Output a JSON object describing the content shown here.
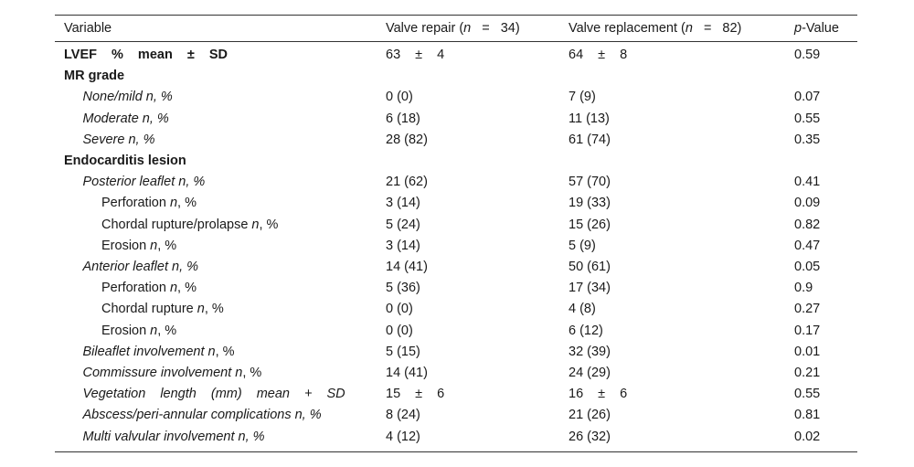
{
  "table": {
    "header": {
      "variable": "Variable",
      "repair": [
        "Valve repair (",
        "n",
        "=",
        "34)"
      ],
      "replacement": [
        "Valve replacement (",
        "n",
        "=",
        "82)"
      ],
      "p": [
        "p",
        "-Value"
      ]
    },
    "rows": [
      {
        "label": [
          "LVEF % mean ± SD"
        ],
        "repair": "63 ± 4",
        "replacement": "64 ± 8",
        "p": 0.59
      },
      {
        "label": [
          "MR grade"
        ]
      },
      {
        "label": [
          "None/mild n, %"
        ],
        "repair": "0 (0)",
        "replacement": "7 (9)",
        "p": 0.07
      },
      {
        "label": [
          "Moderate n, %"
        ],
        "repair": "6 (18)",
        "replacement": "11 (13)",
        "p": 0.55
      },
      {
        "label": [
          "Severe n, %"
        ],
        "repair": "28 (82)",
        "replacement": "61 (74)",
        "p": 0.35
      },
      {
        "label": [
          "Endocarditis lesion"
        ]
      },
      {
        "label": [
          "Posterior leaflet n, %"
        ],
        "repair": "21 (62)",
        "replacement": "57 (70)",
        "p": 0.41
      },
      {
        "label": [
          "Perforation",
          "n",
          ", %"
        ],
        "repair": "3 (14)",
        "replacement": "19 (33)",
        "p": 0.09
      },
      {
        "label": [
          "Chordal rupture/prolapse",
          "n",
          ", %"
        ],
        "repair": "5 (24)",
        "replacement": "15 (26)",
        "p": 0.82
      },
      {
        "label": [
          "Erosion",
          "n",
          ", %"
        ],
        "repair": "3 (14)",
        "replacement": "5 (9)",
        "p": 0.47
      },
      {
        "label": [
          "Anterior leaflet n, %"
        ],
        "repair": "14 (41)",
        "replacement": "50 (61)",
        "p": 0.05
      },
      {
        "label": [
          "Perforation",
          "n",
          ", %"
        ],
        "repair": "5 (36)",
        "replacement": "17 (34)",
        "p": 0.9
      },
      {
        "label": [
          "Chordal rupture",
          "n",
          ", %"
        ],
        "repair": "0 (0)",
        "replacement": "4 (8)",
        "p": 0.27
      },
      {
        "label": [
          "Erosion",
          "n",
          ", %"
        ],
        "repair": "0 (0)",
        "replacement": "6 (12)",
        "p": 0.17
      },
      {
        "label": [
          "Bileaflet involvement n",
          ", %"
        ],
        "repair": "5 (15)",
        "replacement": "32 (39)",
        "p": 0.01
      },
      {
        "label": [
          "Commissure involvement n",
          ", %"
        ],
        "repair": "14 (41)",
        "replacement": "24 (29)",
        "p": 0.21
      },
      {
        "label": [
          "Vegetation length (mm) mean + SD"
        ],
        "repair": "15 ± 6",
        "replacement": "16 ± 6",
        "p": 0.55
      },
      {
        "label": [
          "Abscess/peri-annular complications n, %"
        ],
        "repair": "8 (24)",
        "replacement": "21 (26)",
        "p": 0.81
      },
      {
        "label": [
          "Multi valvular involvement n, %"
        ],
        "repair": "4 (12)",
        "replacement": "26 (32)",
        "p": 0.02
      }
    ]
  }
}
